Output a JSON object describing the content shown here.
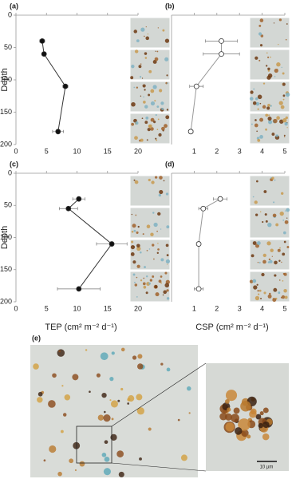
{
  "chart_data": [
    {
      "type": "line",
      "label": "(a)",
      "y_label": "Depth",
      "xlim": [
        0,
        20
      ],
      "xticks": [
        0,
        5,
        10,
        15,
        20
      ],
      "ylim": [
        0,
        200
      ],
      "yticks": [
        0,
        50,
        100,
        150,
        200
      ],
      "y_reversed": true,
      "color": "#333333",
      "marker_fill": "#111111",
      "values": [
        4.3,
        4.6,
        8.1,
        6.9
      ],
      "depths": [
        40,
        60,
        110,
        180
      ],
      "errors": [
        0.4,
        0.3,
        0.4,
        0.9
      ]
    },
    {
      "type": "line",
      "label": "(b)",
      "xlim": [
        0,
        5
      ],
      "xticks": [
        1,
        2,
        3,
        4,
        5
      ],
      "ylim": [
        0,
        200
      ],
      "y_reversed": true,
      "color": "#999999",
      "marker_fill": "#ffffff",
      "values": [
        2.2,
        2.2,
        1.1,
        0.85
      ],
      "depths": [
        40,
        60,
        110,
        180
      ],
      "errors": [
        0.7,
        0.8,
        0.3,
        0.1
      ]
    },
    {
      "type": "line",
      "label": "(c)",
      "y_label": "Depth",
      "x_label": "TEP (cm² m⁻² d⁻¹)",
      "xlim": [
        0,
        20
      ],
      "xticks": [
        0,
        5,
        10,
        15,
        20
      ],
      "ylim": [
        0,
        200
      ],
      "yticks": [
        0,
        50,
        100,
        150,
        200
      ],
      "y_reversed": true,
      "color": "#333333",
      "marker_fill": "#111111",
      "values": [
        10.3,
        8.6,
        15.7,
        10.3
      ],
      "depths": [
        40,
        55,
        110,
        180
      ],
      "errors": [
        1,
        1.5,
        2.5,
        3.5
      ]
    },
    {
      "type": "line",
      "label": "(d)",
      "x_label": "CSP (cm² m⁻² d⁻¹)",
      "xlim": [
        0,
        5
      ],
      "xticks": [
        1,
        2,
        3,
        4,
        5
      ],
      "ylim": [
        0,
        200
      ],
      "y_reversed": true,
      "color": "#999999",
      "marker_fill": "#ffffff",
      "values": [
        2.15,
        1.4,
        1.2,
        1.2
      ],
      "depths": [
        40,
        55,
        110,
        180
      ],
      "errors": [
        0.3,
        0.2,
        0.05,
        0.2
      ]
    }
  ],
  "panel_e": {
    "label": "(e)",
    "scale_bar": "10 µm"
  }
}
